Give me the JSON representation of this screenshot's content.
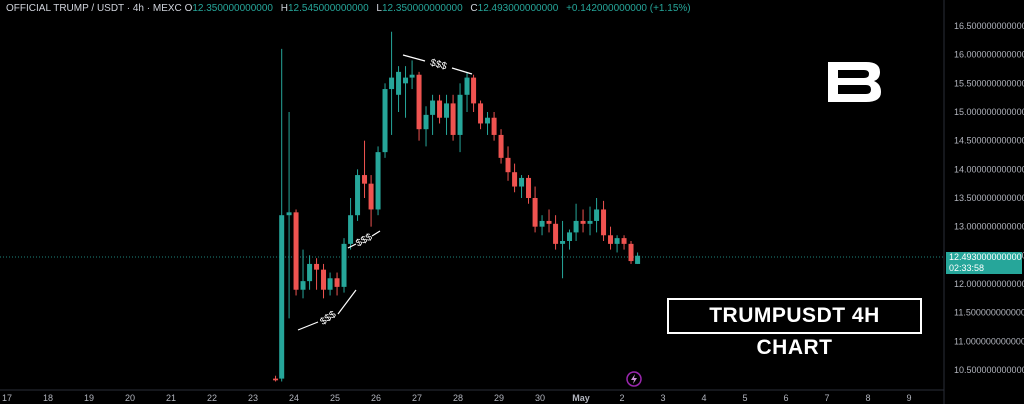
{
  "header": {
    "symbol": "OFFICIAL TRUMP / USDT · 4h · MEXC",
    "o_label": "O",
    "o_value": "12.350000000000",
    "h_label": "H",
    "h_value": "12.545000000000",
    "l_label": "L",
    "l_value": "12.350000000000",
    "c_label": "C",
    "c_value": "12.493000000000",
    "change": "+0.142000000000 (+1.15%)"
  },
  "price_tag": {
    "price": "12.493000000000",
    "countdown": "02:33:58"
  },
  "watermark": "TRUMPUSDT 4H CHART",
  "colors": {
    "up": "#26a69a",
    "down": "#ef5350",
    "background": "#000000",
    "price_line": "#26a69a"
  },
  "icons": {
    "logo": "brand-b-logo",
    "lightning": "lightning-icon"
  },
  "chart_data": {
    "type": "candlestick",
    "title": "",
    "ylim": [
      10.3,
      16.8
    ],
    "y_ticks": [
      "16.500000000000",
      "16.000000000000",
      "15.500000000000",
      "15.000000000000",
      "14.500000000000",
      "14.000000000000",
      "13.500000000000",
      "13.000000000000",
      "12.500000000000",
      "12.000000000000",
      "11.500000000000",
      "11.000000000000",
      "10.500000000000"
    ],
    "x_ticks": [
      "17",
      "18",
      "19",
      "20",
      "21",
      "22",
      "23",
      "24",
      "25",
      "26",
      "27",
      "28",
      "29",
      "30",
      "May",
      "2",
      "3",
      "4",
      "5",
      "6",
      "7",
      "8",
      "9"
    ],
    "last_price": 12.493,
    "annotations": [
      {
        "text": "$$$",
        "x": 24.9,
        "y": 11.65
      },
      {
        "text": "$$$",
        "x": 25.7,
        "y": 12.9
      },
      {
        "text": "$$$",
        "x": 27.5,
        "y": 16.0
      }
    ],
    "candles": [
      {
        "t": 23.55,
        "o": 10.35,
        "h": 10.4,
        "l": 10.3,
        "c": 10.32
      },
      {
        "t": 23.7,
        "o": 10.35,
        "h": 16.1,
        "l": 10.3,
        "c": 13.2
      },
      {
        "t": 23.88,
        "o": 13.2,
        "h": 15.0,
        "l": 11.4,
        "c": 13.25
      },
      {
        "t": 24.05,
        "o": 13.25,
        "h": 13.3,
        "l": 11.8,
        "c": 11.9
      },
      {
        "t": 24.22,
        "o": 11.9,
        "h": 12.6,
        "l": 11.75,
        "c": 12.05
      },
      {
        "t": 24.38,
        "o": 12.05,
        "h": 12.5,
        "l": 11.9,
        "c": 12.35
      },
      {
        "t": 24.55,
        "o": 12.35,
        "h": 12.45,
        "l": 11.9,
        "c": 12.25
      },
      {
        "t": 24.72,
        "o": 12.25,
        "h": 12.35,
        "l": 11.75,
        "c": 11.9
      },
      {
        "t": 24.88,
        "o": 11.9,
        "h": 12.2,
        "l": 11.8,
        "c": 12.1
      },
      {
        "t": 25.05,
        "o": 12.1,
        "h": 12.2,
        "l": 11.8,
        "c": 11.95
      },
      {
        "t": 25.22,
        "o": 11.95,
        "h": 12.8,
        "l": 11.85,
        "c": 12.7
      },
      {
        "t": 25.38,
        "o": 12.7,
        "h": 13.5,
        "l": 12.6,
        "c": 13.2
      },
      {
        "t": 25.55,
        "o": 13.2,
        "h": 14.0,
        "l": 13.1,
        "c": 13.9
      },
      {
        "t": 25.72,
        "o": 13.9,
        "h": 14.5,
        "l": 13.5,
        "c": 13.75
      },
      {
        "t": 25.88,
        "o": 13.75,
        "h": 13.9,
        "l": 13.0,
        "c": 13.3
      },
      {
        "t": 26.05,
        "o": 13.3,
        "h": 14.4,
        "l": 13.2,
        "c": 14.3
      },
      {
        "t": 26.22,
        "o": 14.3,
        "h": 15.5,
        "l": 14.2,
        "c": 15.4
      },
      {
        "t": 26.38,
        "o": 15.4,
        "h": 16.4,
        "l": 14.6,
        "c": 15.6
      },
      {
        "t": 26.55,
        "o": 15.3,
        "h": 15.8,
        "l": 15.0,
        "c": 15.7
      },
      {
        "t": 26.72,
        "o": 15.5,
        "h": 15.8,
        "l": 14.9,
        "c": 15.6
      },
      {
        "t": 26.88,
        "o": 15.6,
        "h": 15.9,
        "l": 15.4,
        "c": 15.65
      },
      {
        "t": 27.05,
        "o": 15.65,
        "h": 15.7,
        "l": 14.5,
        "c": 14.7
      },
      {
        "t": 27.22,
        "o": 14.7,
        "h": 15.1,
        "l": 14.4,
        "c": 14.95
      },
      {
        "t": 27.38,
        "o": 14.95,
        "h": 15.3,
        "l": 14.6,
        "c": 15.2
      },
      {
        "t": 27.55,
        "o": 15.2,
        "h": 15.3,
        "l": 14.8,
        "c": 14.9
      },
      {
        "t": 27.72,
        "o": 14.9,
        "h": 15.3,
        "l": 14.6,
        "c": 15.15
      },
      {
        "t": 27.88,
        "o": 15.15,
        "h": 15.3,
        "l": 14.5,
        "c": 14.6
      },
      {
        "t": 28.05,
        "o": 14.6,
        "h": 15.5,
        "l": 14.3,
        "c": 15.3
      },
      {
        "t": 28.22,
        "o": 15.3,
        "h": 15.7,
        "l": 15.0,
        "c": 15.6
      },
      {
        "t": 28.38,
        "o": 15.6,
        "h": 15.65,
        "l": 15.0,
        "c": 15.15
      },
      {
        "t": 28.55,
        "o": 15.15,
        "h": 15.2,
        "l": 14.7,
        "c": 14.8
      },
      {
        "t": 28.72,
        "o": 14.8,
        "h": 15.0,
        "l": 14.6,
        "c": 14.9
      },
      {
        "t": 28.88,
        "o": 14.9,
        "h": 15.0,
        "l": 14.5,
        "c": 14.6
      },
      {
        "t": 29.05,
        "o": 14.6,
        "h": 14.7,
        "l": 14.1,
        "c": 14.2
      },
      {
        "t": 29.22,
        "o": 14.2,
        "h": 14.4,
        "l": 13.8,
        "c": 13.95
      },
      {
        "t": 29.38,
        "o": 13.95,
        "h": 14.1,
        "l": 13.6,
        "c": 13.7
      },
      {
        "t": 29.55,
        "o": 13.7,
        "h": 13.9,
        "l": 13.5,
        "c": 13.85
      },
      {
        "t": 29.72,
        "o": 13.85,
        "h": 13.9,
        "l": 13.4,
        "c": 13.5
      },
      {
        "t": 29.88,
        "o": 13.5,
        "h": 13.7,
        "l": 12.9,
        "c": 13.0
      },
      {
        "t": 30.05,
        "o": 13.0,
        "h": 13.2,
        "l": 12.85,
        "c": 13.1
      },
      {
        "t": 30.22,
        "o": 13.1,
        "h": 13.3,
        "l": 12.9,
        "c": 13.05
      },
      {
        "t": 30.38,
        "o": 13.05,
        "h": 13.2,
        "l": 12.6,
        "c": 12.7
      },
      {
        "t": 30.55,
        "o": 12.7,
        "h": 13.1,
        "l": 12.1,
        "c": 12.75
      },
      {
        "t": 30.72,
        "o": 12.75,
        "h": 12.95,
        "l": 12.6,
        "c": 12.9
      },
      {
        "t": 30.88,
        "o": 12.9,
        "h": 13.4,
        "l": 12.75,
        "c": 13.1
      },
      {
        "t": 31.05,
        "o": 13.1,
        "h": 13.3,
        "l": 12.9,
        "c": 13.05
      },
      {
        "t": 31.22,
        "o": 13.05,
        "h": 13.35,
        "l": 12.85,
        "c": 13.1
      },
      {
        "t": 31.38,
        "o": 13.1,
        "h": 13.5,
        "l": 12.9,
        "c": 13.3
      },
      {
        "t": 31.55,
        "o": 13.3,
        "h": 13.45,
        "l": 12.75,
        "c": 12.85
      },
      {
        "t": 31.72,
        "o": 12.85,
        "h": 13.0,
        "l": 12.6,
        "c": 12.7
      },
      {
        "t": 31.88,
        "o": 12.7,
        "h": 12.85,
        "l": 12.55,
        "c": 12.8
      },
      {
        "t": 32.05,
        "o": 12.8,
        "h": 12.85,
        "l": 12.6,
        "c": 12.7
      },
      {
        "t": 32.22,
        "o": 12.7,
        "h": 12.75,
        "l": 12.35,
        "c": 12.4
      },
      {
        "t": 32.38,
        "o": 12.35,
        "h": 12.55,
        "l": 12.35,
        "c": 12.493
      }
    ]
  }
}
